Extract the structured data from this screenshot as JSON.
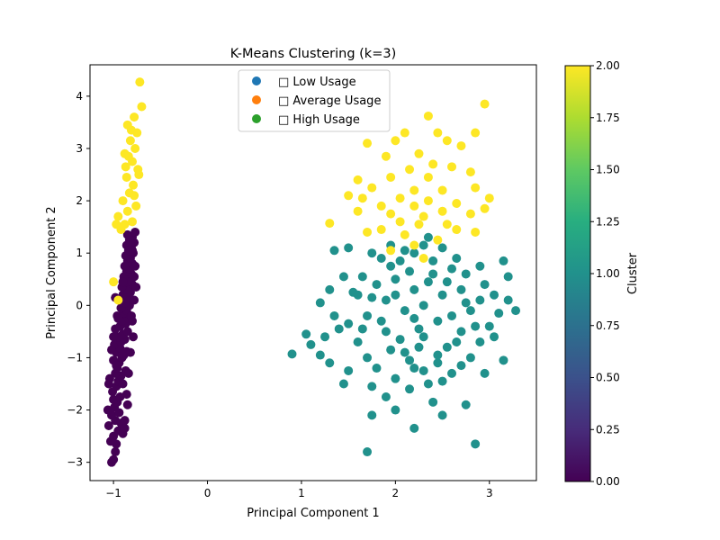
{
  "chart_data": {
    "type": "scatter",
    "title": "K-Means Clustering (k=3)",
    "xlabel": "Principal Component 1",
    "ylabel": "Principal Component 2",
    "xlim": [
      -1.25,
      3.5
    ],
    "ylim": [
      -3.35,
      4.6
    ],
    "x_ticks": [
      -1,
      0,
      1,
      2,
      3
    ],
    "y_ticks": [
      -3,
      -2,
      -1,
      0,
      1,
      2,
      3,
      4
    ],
    "grid": false,
    "legend": {
      "placement": "upper-center",
      "entries": [
        {
          "label": "□ Low Usage",
          "color": "#1f77b4"
        },
        {
          "label": "□ Average Usage",
          "color": "#ff7f0e"
        },
        {
          "label": "□ High Usage",
          "color": "#2ca02c"
        }
      ]
    },
    "colorbar": {
      "label": "Cluster",
      "colormap": "viridis",
      "range": [
        0,
        2
      ],
      "ticks": [
        "0.00",
        "0.25",
        "0.50",
        "0.75",
        "1.00",
        "1.25",
        "1.50",
        "1.75",
        "2.00"
      ]
    },
    "series": [
      {
        "cluster": 0,
        "color": "#440154",
        "points": [
          [
            -1.02,
            -3.0
          ],
          [
            -1.0,
            -2.95
          ],
          [
            -0.98,
            -2.8
          ],
          [
            -1.03,
            -2.6
          ],
          [
            -1.0,
            -2.5
          ],
          [
            -0.97,
            -2.65
          ],
          [
            -0.95,
            -2.4
          ],
          [
            -1.05,
            -2.3
          ],
          [
            -0.98,
            -2.2
          ],
          [
            -1.02,
            -2.1
          ],
          [
            -0.9,
            -2.45
          ],
          [
            -0.92,
            -2.25
          ],
          [
            -1.06,
            -2.0
          ],
          [
            -0.99,
            -1.95
          ],
          [
            -0.96,
            -1.85
          ],
          [
            -0.94,
            -2.05
          ],
          [
            -1.0,
            -1.8
          ],
          [
            -0.88,
            -2.2
          ],
          [
            -0.93,
            -1.75
          ],
          [
            -1.01,
            -1.65
          ],
          [
            -0.97,
            -1.55
          ],
          [
            -0.95,
            -1.45
          ],
          [
            -1.04,
            -1.4
          ],
          [
            -0.9,
            -1.5
          ],
          [
            -0.92,
            -1.35
          ],
          [
            -0.98,
            -1.3
          ],
          [
            -0.96,
            -1.2
          ],
          [
            -0.87,
            -1.25
          ],
          [
            -0.94,
            -1.1
          ],
          [
            -1.0,
            -1.05
          ],
          [
            -0.91,
            -1.0
          ],
          [
            -0.89,
            -0.95
          ],
          [
            -0.97,
            -0.9
          ],
          [
            -0.93,
            -0.82
          ],
          [
            -0.86,
            -0.88
          ],
          [
            -0.99,
            -0.75
          ],
          [
            -0.92,
            -0.7
          ],
          [
            -0.88,
            -0.65
          ],
          [
            -0.95,
            -0.6
          ],
          [
            -0.9,
            -0.55
          ],
          [
            -0.85,
            -0.5
          ],
          [
            -0.98,
            -0.45
          ],
          [
            -0.93,
            -0.4
          ],
          [
            -0.87,
            -0.35
          ],
          [
            -0.91,
            -0.3
          ],
          [
            -0.84,
            -0.25
          ],
          [
            -0.96,
            -0.2
          ],
          [
            -0.89,
            -0.15
          ],
          [
            -0.86,
            -0.1
          ],
          [
            -0.92,
            -0.05
          ],
          [
            -0.83,
            0.0
          ],
          [
            -0.88,
            0.05
          ],
          [
            -0.94,
            0.1
          ],
          [
            -0.85,
            0.15
          ],
          [
            -0.9,
            0.2
          ],
          [
            -0.82,
            0.25
          ],
          [
            -0.87,
            0.3
          ],
          [
            -0.91,
            0.35
          ],
          [
            -0.8,
            0.4
          ],
          [
            -0.86,
            0.45
          ],
          [
            -0.84,
            0.5
          ],
          [
            -0.89,
            0.55
          ],
          [
            -0.81,
            0.6
          ],
          [
            -0.86,
            0.65
          ],
          [
            -0.83,
            0.7
          ],
          [
            -0.88,
            0.75
          ],
          [
            -0.8,
            0.8
          ],
          [
            -0.85,
            0.85
          ],
          [
            -0.82,
            0.9
          ],
          [
            -0.87,
            0.95
          ],
          [
            -0.79,
            1.0
          ],
          [
            -0.84,
            1.05
          ],
          [
            -0.81,
            1.1
          ],
          [
            -0.86,
            1.15
          ],
          [
            -0.78,
            1.2
          ],
          [
            -0.83,
            1.25
          ],
          [
            -0.8,
            1.3
          ],
          [
            -0.85,
            1.35
          ],
          [
            -0.77,
            1.4
          ],
          [
            -0.82,
            1.2
          ],
          [
            -0.76,
            0.35
          ],
          [
            -0.78,
            0.1
          ],
          [
            -0.8,
            -0.3
          ],
          [
            -0.79,
            -0.6
          ],
          [
            -0.82,
            -0.9
          ],
          [
            -0.84,
            -1.3
          ],
          [
            -0.86,
            -1.7
          ],
          [
            -0.88,
            -2.35
          ],
          [
            -0.85,
            -1.9
          ],
          [
            -0.81,
            -0.2
          ],
          [
            -0.78,
            0.55
          ],
          [
            -0.77,
            0.75
          ],
          [
            -0.8,
            1.05
          ],
          [
            -0.9,
            0.45
          ],
          [
            -0.95,
            -0.25
          ],
          [
            -1.0,
            -0.6
          ],
          [
            -0.97,
            -1.15
          ],
          [
            -1.05,
            -1.5
          ],
          [
            -0.98,
            0.15
          ],
          [
            -1.02,
            -0.85
          ]
        ]
      },
      {
        "cluster": 1,
        "color": "#21918c",
        "points": [
          [
            0.9,
            -0.93
          ],
          [
            1.7,
            -2.8
          ],
          [
            2.2,
            -2.35
          ],
          [
            2.85,
            -2.65
          ],
          [
            1.75,
            -2.1
          ],
          [
            2.5,
            -2.1
          ],
          [
            2.0,
            -2.0
          ],
          [
            1.9,
            -1.75
          ],
          [
            2.4,
            -1.85
          ],
          [
            2.15,
            -1.6
          ],
          [
            1.75,
            -1.55
          ],
          [
            2.75,
            -1.9
          ],
          [
            2.95,
            -1.3
          ],
          [
            3.15,
            -1.05
          ],
          [
            1.5,
            -1.25
          ],
          [
            1.45,
            -1.5
          ],
          [
            1.3,
            -1.1
          ],
          [
            1.2,
            -0.95
          ],
          [
            1.1,
            -0.75
          ],
          [
            1.05,
            -0.55
          ],
          [
            1.25,
            -0.6
          ],
          [
            1.4,
            -0.45
          ],
          [
            1.35,
            -0.2
          ],
          [
            1.5,
            -0.35
          ],
          [
            1.6,
            -0.7
          ],
          [
            1.7,
            -1.0
          ],
          [
            1.8,
            -1.2
          ],
          [
            1.9,
            -0.5
          ],
          [
            2.0,
            -1.4
          ],
          [
            2.1,
            -0.9
          ],
          [
            2.2,
            -1.2
          ],
          [
            2.3,
            -0.6
          ],
          [
            2.35,
            -1.5
          ],
          [
            2.45,
            -1.1
          ],
          [
            2.55,
            -0.8
          ],
          [
            2.6,
            -1.3
          ],
          [
            2.7,
            -0.5
          ],
          [
            2.8,
            -1.0
          ],
          [
            2.9,
            -0.7
          ],
          [
            3.0,
            -0.4
          ],
          [
            3.05,
            -0.6
          ],
          [
            3.1,
            -0.15
          ],
          [
            3.28,
            -0.1
          ],
          [
            3.2,
            0.1
          ],
          [
            3.05,
            0.2
          ],
          [
            2.95,
            0.4
          ],
          [
            3.2,
            0.55
          ],
          [
            3.15,
            0.85
          ],
          [
            2.9,
            0.75
          ],
          [
            2.75,
            0.6
          ],
          [
            2.65,
            0.9
          ],
          [
            2.5,
            1.1
          ],
          [
            2.35,
            1.3
          ],
          [
            2.2,
            1.0
          ],
          [
            2.05,
            0.85
          ],
          [
            1.95,
            1.15
          ],
          [
            1.85,
            0.9
          ],
          [
            1.75,
            1.0
          ],
          [
            1.65,
            0.55
          ],
          [
            1.55,
            0.25
          ],
          [
            1.45,
            0.55
          ],
          [
            1.3,
            0.3
          ],
          [
            1.2,
            0.05
          ],
          [
            1.35,
            1.05
          ],
          [
            1.5,
            1.1
          ],
          [
            1.6,
            0.2
          ],
          [
            1.7,
            -0.2
          ],
          [
            1.8,
            0.4
          ],
          [
            1.9,
            0.1
          ],
          [
            2.0,
            0.5
          ],
          [
            2.1,
            -0.1
          ],
          [
            2.2,
            0.3
          ],
          [
            2.3,
            0.0
          ],
          [
            2.4,
            0.6
          ],
          [
            2.5,
            0.2
          ],
          [
            2.6,
            -0.2
          ],
          [
            2.7,
            0.3
          ],
          [
            2.8,
            -0.1
          ],
          [
            2.9,
            0.1
          ],
          [
            2.85,
            -0.4
          ],
          [
            2.65,
            -0.7
          ],
          [
            2.45,
            -0.3
          ],
          [
            2.25,
            -0.45
          ],
          [
            2.05,
            -0.65
          ],
          [
            1.85,
            -0.3
          ],
          [
            1.95,
            -0.85
          ],
          [
            2.15,
            -1.05
          ],
          [
            2.3,
            -1.25
          ],
          [
            2.5,
            -1.45
          ],
          [
            2.7,
            -1.15
          ],
          [
            2.35,
            0.45
          ],
          [
            2.15,
            0.65
          ],
          [
            1.95,
            0.75
          ],
          [
            2.55,
            0.45
          ],
          [
            2.75,
            0.05
          ],
          [
            1.75,
            0.15
          ],
          [
            1.65,
            -0.45
          ],
          [
            2.25,
            -0.8
          ],
          [
            2.45,
            -0.95
          ],
          [
            2.6,
            0.7
          ],
          [
            2.3,
            1.15
          ],
          [
            2.1,
            1.05
          ],
          [
            2.4,
            0.85
          ],
          [
            2.0,
            0.2
          ],
          [
            2.2,
            -0.25
          ]
        ]
      },
      {
        "cluster": 2,
        "color": "#fde725",
        "points": [
          [
            -0.72,
            4.27
          ],
          [
            -0.7,
            3.8
          ],
          [
            -0.78,
            3.6
          ],
          [
            -0.85,
            3.45
          ],
          [
            -0.75,
            3.3
          ],
          [
            -0.82,
            3.15
          ],
          [
            -0.77,
            3.0
          ],
          [
            -0.88,
            2.9
          ],
          [
            -0.8,
            2.75
          ],
          [
            -0.74,
            2.6
          ],
          [
            -0.86,
            2.45
          ],
          [
            -0.79,
            2.3
          ],
          [
            -0.83,
            2.15
          ],
          [
            -0.9,
            2.0
          ],
          [
            -0.76,
            1.9
          ],
          [
            -0.85,
            1.8
          ],
          [
            -0.95,
            1.7
          ],
          [
            -0.8,
            1.6
          ],
          [
            -0.88,
            1.55
          ],
          [
            -0.92,
            1.45
          ],
          [
            -0.78,
            2.1
          ],
          [
            -0.73,
            2.5
          ],
          [
            -0.84,
            2.85
          ],
          [
            -0.81,
            3.35
          ],
          [
            -0.87,
            2.65
          ],
          [
            -0.97,
            1.55
          ],
          [
            -1.0,
            0.45
          ],
          [
            -0.95,
            0.1
          ],
          [
            2.95,
            3.85
          ],
          [
            2.35,
            3.62
          ],
          [
            2.1,
            3.3
          ],
          [
            2.45,
            3.3
          ],
          [
            2.85,
            3.3
          ],
          [
            2.55,
            3.15
          ],
          [
            1.7,
            3.1
          ],
          [
            2.0,
            3.15
          ],
          [
            2.7,
            3.05
          ],
          [
            2.25,
            2.9
          ],
          [
            1.9,
            2.85
          ],
          [
            2.4,
            2.7
          ],
          [
            2.6,
            2.65
          ],
          [
            2.8,
            2.55
          ],
          [
            2.15,
            2.6
          ],
          [
            1.95,
            2.45
          ],
          [
            2.35,
            2.45
          ],
          [
            1.6,
            2.4
          ],
          [
            1.75,
            2.25
          ],
          [
            2.2,
            2.2
          ],
          [
            2.5,
            2.2
          ],
          [
            2.85,
            2.25
          ],
          [
            1.5,
            2.1
          ],
          [
            2.05,
            2.05
          ],
          [
            2.35,
            2.0
          ],
          [
            2.65,
            1.95
          ],
          [
            1.65,
            2.05
          ],
          [
            3.0,
            2.05
          ],
          [
            2.2,
            1.9
          ],
          [
            1.85,
            1.9
          ],
          [
            2.5,
            1.8
          ],
          [
            2.8,
            1.75
          ],
          [
            2.95,
            1.85
          ],
          [
            1.95,
            1.75
          ],
          [
            2.3,
            1.7
          ],
          [
            1.6,
            1.8
          ],
          [
            2.55,
            1.55
          ],
          [
            1.3,
            1.57
          ],
          [
            2.05,
            1.6
          ],
          [
            2.25,
            1.55
          ],
          [
            1.85,
            1.45
          ],
          [
            2.1,
            1.35
          ],
          [
            2.65,
            1.45
          ],
          [
            2.45,
            1.25
          ],
          [
            1.7,
            1.4
          ],
          [
            2.2,
            1.15
          ],
          [
            2.3,
            0.9
          ],
          [
            1.95,
            1.05
          ],
          [
            2.85,
            1.4
          ]
        ]
      }
    ]
  }
}
